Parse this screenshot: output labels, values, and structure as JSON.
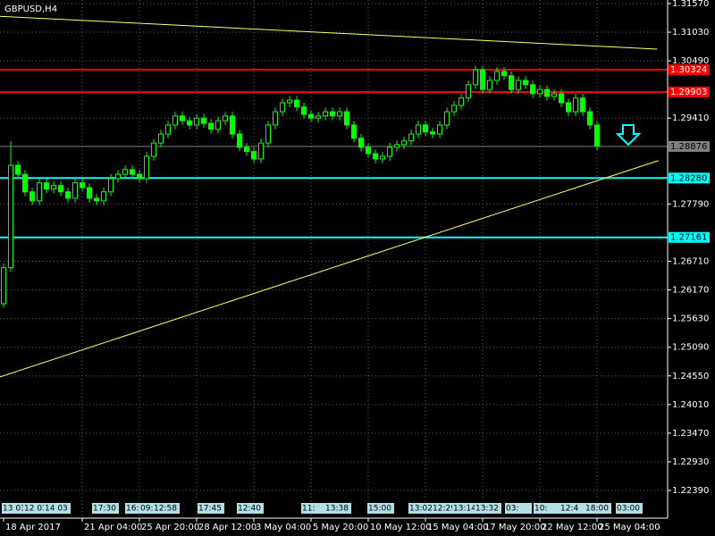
{
  "chart_data": {
    "type": "candlestick",
    "title": "GBPUSD,H4",
    "color": "#00ff00",
    "background": "#000000",
    "grid": true,
    "categories": [
      "18 Apr 2017",
      null,
      null,
      null,
      null,
      null,
      null,
      null,
      null,
      null,
      null,
      "21 Apr 04:00",
      null,
      null,
      null,
      null,
      null,
      null,
      null,
      "25 Apr 20:00",
      null,
      null,
      null,
      null,
      null,
      null,
      null,
      "28 Apr 12:00",
      null,
      null,
      null,
      null,
      null,
      null,
      null,
      "3 May 04:00",
      null,
      null,
      null,
      null,
      null,
      null,
      null,
      "5 May 20:00",
      null,
      null,
      null,
      null,
      null,
      null,
      null,
      "10 May 12:00",
      null,
      null,
      null,
      null,
      null,
      null,
      null,
      "15 May 04:00",
      null,
      null,
      null,
      null,
      null,
      null,
      null,
      "17 May 20:00",
      null,
      null,
      null,
      null,
      null,
      null,
      null,
      "22 May 12:00",
      null,
      null,
      null,
      null,
      null,
      null,
      null,
      "25 May 04:00"
    ],
    "open": [
      1.2591,
      1.2659,
      1.2852,
      1.2835,
      1.2802,
      1.2785,
      1.2819,
      1.2807,
      1.2814,
      1.2802,
      1.279,
      1.2819,
      1.281,
      1.279,
      1.2785,
      1.2802,
      1.2827,
      1.2835,
      1.2844,
      1.2835,
      1.2827,
      1.2869,
      1.2894,
      1.2911,
      1.2928,
      1.2945,
      1.2936,
      1.2928,
      1.2941,
      1.2931,
      1.292,
      1.2936,
      1.2945,
      1.2911,
      1.2886,
      1.2878,
      1.2864,
      1.2894,
      1.2928,
      1.2953,
      1.297,
      1.2975,
      1.2962,
      1.2948,
      1.2941,
      1.2945,
      1.2953,
      1.2945,
      1.2953,
      1.2928,
      1.2903,
      1.2886,
      1.2874,
      1.2864,
      1.2869,
      1.2886,
      1.2891,
      1.2898,
      1.2911,
      1.2928,
      1.2915,
      1.2911,
      1.2928,
      1.2953,
      1.2965,
      1.2979,
      1.3004,
      1.3032,
      1.2995,
      1.3012,
      1.3029,
      1.3021,
      1.2995,
      1.3012,
      1.3004,
      1.2987,
      1.2995,
      1.2982,
      1.2987,
      1.297,
      1.2953,
      1.2979,
      1.2953,
      1.2928
    ],
    "high": [
      1.2667,
      1.2898,
      1.286,
      1.2843,
      1.281,
      1.2827,
      1.2827,
      1.2822,
      1.2822,
      1.281,
      1.2827,
      1.2827,
      1.2818,
      1.2798,
      1.281,
      1.2835,
      1.2843,
      1.2852,
      1.2852,
      1.2843,
      1.2877,
      1.2902,
      1.2919,
      1.2936,
      1.2953,
      1.2953,
      1.2944,
      1.2949,
      1.2949,
      1.2939,
      1.2944,
      1.2953,
      1.2953,
      1.2919,
      1.2894,
      1.2886,
      1.2902,
      1.2936,
      1.2961,
      1.2978,
      1.2983,
      1.2983,
      1.297,
      1.2956,
      1.2953,
      1.2961,
      1.2961,
      1.2961,
      1.2961,
      1.2936,
      1.2911,
      1.2894,
      1.2882,
      1.2877,
      1.2894,
      1.2899,
      1.2906,
      1.2919,
      1.2936,
      1.2936,
      1.2923,
      1.2936,
      1.2961,
      1.2973,
      1.2987,
      1.3012,
      1.304,
      1.304,
      1.302,
      1.3037,
      1.3037,
      1.3029,
      1.302,
      1.302,
      1.3012,
      1.3003,
      1.3003,
      1.2995,
      1.2995,
      1.2978,
      1.2987,
      1.2987,
      1.2961,
      1.2936
    ],
    "low": [
      1.2583,
      1.2651,
      1.2827,
      1.2794,
      1.2777,
      1.2777,
      1.2799,
      1.2799,
      1.2794,
      1.2782,
      1.2782,
      1.2802,
      1.2782,
      1.2777,
      1.2777,
      1.2794,
      1.2819,
      1.2827,
      1.2827,
      1.2819,
      1.2819,
      1.2861,
      1.2886,
      1.2903,
      1.292,
      1.2928,
      1.292,
      1.292,
      1.2923,
      1.2912,
      1.2912,
      1.2928,
      1.2903,
      1.2878,
      1.287,
      1.2856,
      1.2856,
      1.2886,
      1.292,
      1.2945,
      1.2962,
      1.2954,
      1.294,
      1.2933,
      1.2933,
      1.2937,
      1.2937,
      1.2937,
      1.292,
      1.2895,
      1.2878,
      1.2866,
      1.2856,
      1.2856,
      1.2861,
      1.2878,
      1.2883,
      1.289,
      1.2903,
      1.2907,
      1.2903,
      1.2903,
      1.292,
      1.2945,
      1.2957,
      1.2971,
      1.2996,
      1.2987,
      1.2987,
      1.3004,
      1.3013,
      1.2987,
      1.2987,
      1.2996,
      1.2979,
      1.2979,
      1.2974,
      1.2974,
      1.2962,
      1.2945,
      1.2945,
      1.2945,
      1.292,
      1.288
    ],
    "close": [
      1.2659,
      1.2852,
      1.2835,
      1.2802,
      1.2785,
      1.2819,
      1.2807,
      1.2814,
      1.2802,
      1.279,
      1.2819,
      1.281,
      1.279,
      1.2785,
      1.2802,
      1.2827,
      1.2835,
      1.2844,
      1.2835,
      1.2827,
      1.2869,
      1.2894,
      1.2911,
      1.2928,
      1.2945,
      1.2936,
      1.2928,
      1.2941,
      1.2931,
      1.292,
      1.2936,
      1.2945,
      1.2911,
      1.2886,
      1.2878,
      1.2864,
      1.2894,
      1.2928,
      1.2953,
      1.297,
      1.2975,
      1.2962,
      1.2948,
      1.2941,
      1.2945,
      1.2953,
      1.2945,
      1.2953,
      1.2928,
      1.2903,
      1.2886,
      1.2874,
      1.2864,
      1.2869,
      1.2886,
      1.2891,
      1.2898,
      1.2911,
      1.2928,
      1.2915,
      1.2911,
      1.2928,
      1.2953,
      1.2965,
      1.2979,
      1.3004,
      1.3032,
      1.2995,
      1.3012,
      1.3029,
      1.3021,
      1.2995,
      1.3012,
      1.3004,
      1.2987,
      1.2995,
      1.2982,
      1.2987,
      1.297,
      1.2953,
      1.2979,
      1.2953,
      1.2928,
      1.2888
    ],
    "ylim": [
      1.21868,
      1.31637
    ],
    "yticks": [
      {
        "value": 1.3157,
        "label": "1.31570"
      },
      {
        "value": 1.3103,
        "label": "1.31030"
      },
      {
        "value": 1.3049,
        "label": "1.30490"
      },
      {
        "value": 1.2941,
        "label": "1.29410"
      },
      {
        "value": 1.2779,
        "label": "1.27790"
      },
      {
        "value": 1.2671,
        "label": "1.26710"
      },
      {
        "value": 1.2617,
        "label": "1.26170"
      },
      {
        "value": 1.2563,
        "label": "1.25630"
      },
      {
        "value": 1.2509,
        "label": "1.25090"
      },
      {
        "value": 1.2455,
        "label": "1.24550"
      },
      {
        "value": 1.2401,
        "label": "1.24010"
      },
      {
        "value": 1.2347,
        "label": "1.23470"
      },
      {
        "value": 1.2293,
        "label": "1.22930"
      },
      {
        "value": 1.2239,
        "label": "1.22390"
      }
    ],
    "levels": [
      {
        "value": 1.30324,
        "label": "1.30324",
        "color": "#ff0000"
      },
      {
        "value": 1.29903,
        "label": "1.29903",
        "color": "#ff0000"
      },
      {
        "value": 1.28876,
        "label": "1.28876",
        "color": "#7f7f7f"
      },
      {
        "value": 1.2828,
        "label": "1.28280",
        "color": "#00ffff"
      },
      {
        "value": 1.27161,
        "label": "1.27161",
        "color": "#00ffff"
      }
    ],
    "trendlines": [
      {
        "color": "#ffff66",
        "x": [
          -0.5,
          91.6
        ],
        "y": [
          1.2453,
          1.2861
        ]
      },
      {
        "color": "#ffff66",
        "x": [
          -0.5,
          91.4
        ],
        "y": [
          1.3133,
          1.3071
        ]
      }
    ],
    "time_labels": [
      "13 03",
      "12 03",
      "14 03",
      "17:30",
      "16:",
      "09:",
      "12:58",
      "17:45",
      "12:40",
      "11:",
      "13:38",
      "15:00",
      "13:02",
      "12:29",
      "13:14",
      "13:32",
      "03:",
      "10:",
      "12:4",
      "18:00",
      "03:00"
    ]
  }
}
